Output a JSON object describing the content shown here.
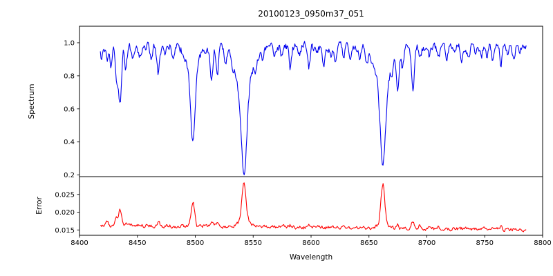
{
  "figure": {
    "background": "#ffffff",
    "frame_color": "#000000"
  },
  "chart_data": [
    {
      "type": "line",
      "panel": "spectrum",
      "title": "20100123_0950m37_051",
      "ylabel": "Spectrum",
      "series_color": "#0000ee",
      "xlim": [
        8400,
        8800
      ],
      "ylim": [
        0.19,
        1.1
      ],
      "xticks": [
        8400,
        8450,
        8500,
        8550,
        8600,
        8650,
        8700,
        8750,
        8800
      ],
      "xtick_labels": [
        "8400",
        "8450",
        "8500",
        "8550",
        "8600",
        "8650",
        "8700",
        "8750",
        "8800"
      ],
      "yticks": [
        1.0,
        0.8,
        0.6,
        0.4,
        0.2
      ],
      "ytick_labels": [
        "1.0",
        "0.8",
        "0.6",
        "0.4",
        "0.2"
      ],
      "x_start": 8418,
      "x_end": 8786,
      "x_step": 0.6,
      "continuum": 0.975,
      "noise": {
        "seed": 12345,
        "amp": 0.045,
        "persistence": 0.55,
        "clip_max": 1.03
      },
      "absorption_line_fields": [
        "center_wavelength",
        "depth",
        "sigma"
      ],
      "absorption_lines": [
        [
          8419,
          0.08,
          1.0
        ],
        [
          8424,
          0.1,
          1.0
        ],
        [
          8427,
          0.13,
          1.0
        ],
        [
          8432,
          0.22,
          1.1
        ],
        [
          8435,
          0.33,
          1.2
        ],
        [
          8440,
          0.12,
          1.0
        ],
        [
          8446,
          0.09,
          1.0
        ],
        [
          8452,
          0.07,
          0.9
        ],
        [
          8462,
          0.06,
          0.9
        ],
        [
          8468,
          0.17,
          1.2
        ],
        [
          8474,
          0.08,
          0.9
        ],
        [
          8481,
          0.05,
          0.9
        ],
        [
          8490,
          0.05,
          0.9
        ],
        [
          8498,
          0.42,
          1.8
        ],
        [
          8498,
          0.17,
          4.5
        ],
        [
          8514,
          0.21,
          1.2
        ],
        [
          8519,
          0.16,
          1.1
        ],
        [
          8526,
          0.07,
          0.9
        ],
        [
          8532,
          0.05,
          0.9
        ],
        [
          8542,
          0.5,
          2.4
        ],
        [
          8542,
          0.25,
          7.0
        ],
        [
          8552,
          0.05,
          0.9
        ],
        [
          8558,
          0.06,
          0.9
        ],
        [
          8568,
          0.05,
          0.9
        ],
        [
          8575,
          0.06,
          0.9
        ],
        [
          8582,
          0.13,
          1.1
        ],
        [
          8590,
          0.05,
          0.9
        ],
        [
          8598,
          0.13,
          1.1
        ],
        [
          8605,
          0.05,
          0.9
        ],
        [
          8611,
          0.1,
          1.0
        ],
        [
          8617,
          0.06,
          0.9
        ],
        [
          8621,
          0.12,
          1.0
        ],
        [
          8628,
          0.05,
          0.9
        ],
        [
          8634,
          0.06,
          0.9
        ],
        [
          8642,
          0.05,
          0.9
        ],
        [
          8648,
          0.08,
          1.0
        ],
        [
          8662,
          0.47,
          2.2
        ],
        [
          8662,
          0.24,
          6.5
        ],
        [
          8670,
          0.06,
          0.9
        ],
        [
          8675,
          0.23,
          1.2
        ],
        [
          8679,
          0.12,
          1.0
        ],
        [
          8688,
          0.27,
          1.3
        ],
        [
          8694,
          0.09,
          1.0
        ],
        [
          8702,
          0.05,
          0.9
        ],
        [
          8710,
          0.09,
          1.0
        ],
        [
          8717,
          0.08,
          1.0
        ],
        [
          8724,
          0.05,
          0.9
        ],
        [
          8730,
          0.06,
          0.9
        ],
        [
          8736,
          0.08,
          1.0
        ],
        [
          8742,
          0.05,
          0.9
        ],
        [
          8747,
          0.06,
          0.9
        ],
        [
          8752,
          0.05,
          0.9
        ],
        [
          8757,
          0.08,
          1.0
        ],
        [
          8764,
          0.1,
          1.0
        ],
        [
          8770,
          0.06,
          0.9
        ],
        [
          8775,
          0.05,
          0.9
        ],
        [
          8780,
          0.06,
          0.9
        ]
      ]
    },
    {
      "type": "line",
      "panel": "error",
      "xlabel": "Wavelength",
      "ylabel": "Error",
      "series_color": "#ff0000",
      "xlim": [
        8400,
        8800
      ],
      "ylim": [
        0.0135,
        0.03
      ],
      "yticks": [
        0.025,
        0.02,
        0.015
      ],
      "ytick_labels": [
        "0.025",
        "0.020",
        "0.015"
      ],
      "x_start": 8418,
      "x_end": 8786,
      "x_step": 0.6,
      "baseline_start": 0.0163,
      "baseline_end": 0.0151,
      "noise": {
        "seed": 54321,
        "amp": 0.0009,
        "persistence": 0.5
      },
      "peak_fields": [
        "center_wavelength",
        "height",
        "sigma"
      ],
      "peaks": [
        [
          8424,
          0.0008,
          1.2
        ],
        [
          8432,
          0.0018,
          1.2
        ],
        [
          8435,
          0.0042,
          1.3
        ],
        [
          8440,
          0.0008,
          1.0
        ],
        [
          8468,
          0.0008,
          1.2
        ],
        [
          8498,
          0.0068,
          1.5
        ],
        [
          8514,
          0.0012,
          1.1
        ],
        [
          8519,
          0.0009,
          1.1
        ],
        [
          8542,
          0.0105,
          1.8
        ],
        [
          8542,
          0.0015,
          5.0
        ],
        [
          8582,
          0.0006,
          1.0
        ],
        [
          8598,
          0.0007,
          1.0
        ],
        [
          8621,
          0.0006,
          1.0
        ],
        [
          8662,
          0.0112,
          1.6
        ],
        [
          8662,
          0.0013,
          4.5
        ],
        [
          8675,
          0.0013,
          1.1
        ],
        [
          8688,
          0.002,
          1.2
        ],
        [
          8694,
          0.001,
          1.0
        ],
        [
          8710,
          0.0005,
          1.0
        ],
        [
          8736,
          0.0005,
          1.0
        ],
        [
          8757,
          0.0005,
          1.0
        ],
        [
          8764,
          0.0007,
          1.0
        ]
      ]
    }
  ]
}
